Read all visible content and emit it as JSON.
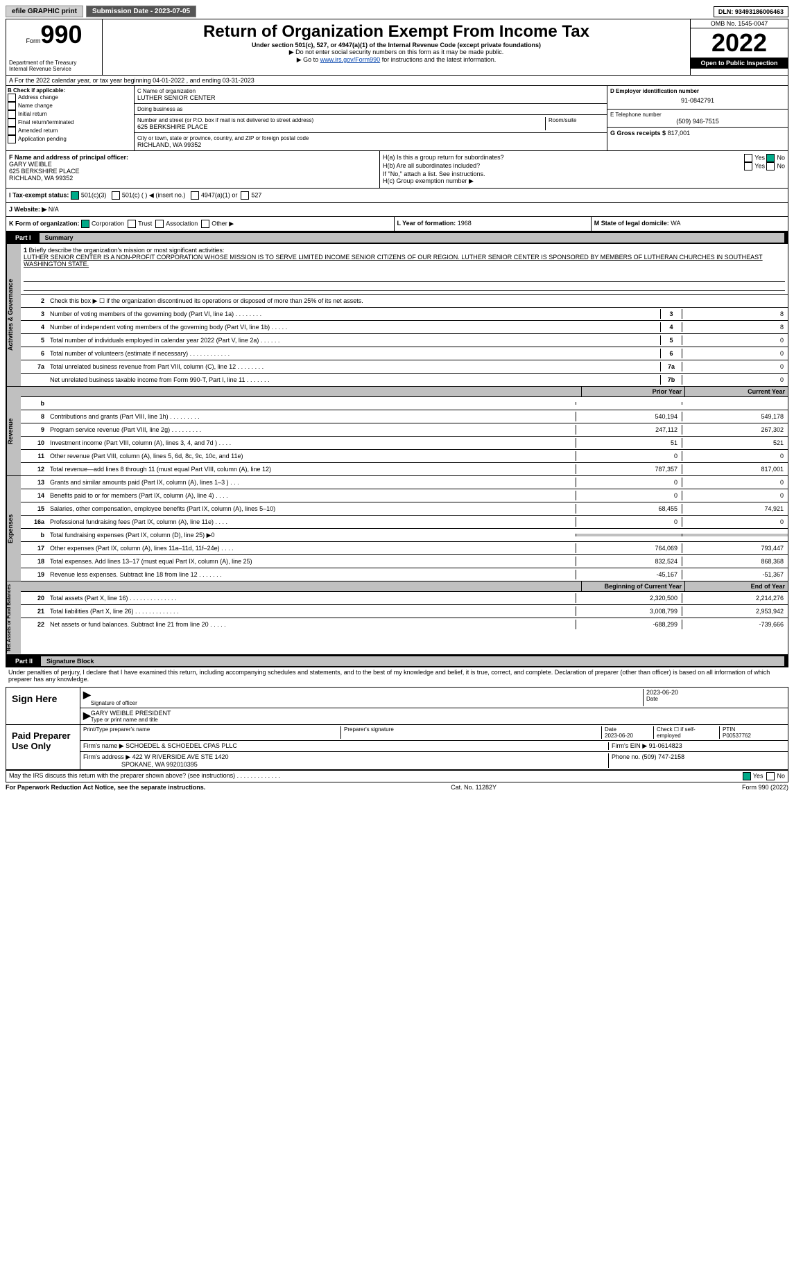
{
  "topbar": {
    "efile": "efile GRAPHIC print",
    "submission": "Submission Date - 2023-07-05",
    "dln": "DLN: 93493186006463"
  },
  "header": {
    "form_label": "Form",
    "form_no": "990",
    "dept": "Department of the Treasury",
    "irs": "Internal Revenue Service",
    "title": "Return of Organization Exempt From Income Tax",
    "subtitle": "Under section 501(c), 527, or 4947(a)(1) of the Internal Revenue Code (except private foundations)",
    "note1": "▶ Do not enter social security numbers on this form as it may be made public.",
    "note2_pre": "▶ Go to ",
    "note2_link": "www.irs.gov/Form990",
    "note2_post": " for instructions and the latest information.",
    "omb": "OMB No. 1545-0047",
    "year": "2022",
    "open": "Open to Public Inspection"
  },
  "a": {
    "text": "A For the 2022 calendar year, or tax year beginning 04-01-2022    , and ending 03-31-2023"
  },
  "b": {
    "label": "B Check if applicable:",
    "items": [
      "Address change",
      "Name change",
      "Initial return",
      "Final return/terminated",
      "Amended return",
      "Application pending"
    ]
  },
  "c": {
    "name_label": "C Name of organization",
    "name": "LUTHER SENIOR CENTER",
    "dba_label": "Doing business as",
    "dba": "",
    "addr_label": "Number and street (or P.O. box if mail is not delivered to street address)",
    "addr": "625 BERKSHIRE PLACE",
    "room_label": "Room/suite",
    "room": "",
    "city_label": "City or town, state or province, country, and ZIP or foreign postal code",
    "city": "RICHLAND, WA  99352"
  },
  "d": {
    "label": "D Employer identification number",
    "val": "91-0842791"
  },
  "e": {
    "label": "E Telephone number",
    "val": "(509) 946-7515"
  },
  "g": {
    "label": "G Gross receipts $",
    "val": "817,001"
  },
  "f": {
    "label": "F  Name and address of principal officer:",
    "name": "GARY WEIBLE",
    "addr1": "625 BERKSHIRE PLACE",
    "addr2": "RICHLAND, WA  99352"
  },
  "h": {
    "a": "H(a)  Is this a group return for subordinates?",
    "b": "H(b)  Are all subordinates included?",
    "note": "If \"No,\" attach a list. See instructions.",
    "c": "H(c)  Group exemption number ▶",
    "yes": "Yes",
    "no": "No"
  },
  "i": {
    "label": "I   Tax-exempt status:",
    "o1": "501(c)(3)",
    "o2": "501(c) (  ) ◀ (insert no.)",
    "o3": "4947(a)(1) or",
    "o4": "527"
  },
  "j": {
    "label": "J   Website: ▶",
    "val": "N/A"
  },
  "k": {
    "label": "K Form of organization:",
    "o1": "Corporation",
    "o2": "Trust",
    "o3": "Association",
    "o4": "Other ▶"
  },
  "l": {
    "label": "L Year of formation:",
    "val": "1968"
  },
  "m": {
    "label": "M State of legal domicile:",
    "val": "WA"
  },
  "part1": {
    "label": "Part I",
    "title": "Summary"
  },
  "mission": {
    "num": "1",
    "text": "Briefly describe the organization's mission or most significant activities:",
    "body": "LUTHER SENIOR CENTER IS A NON-PROFIT CORPORATION WHOSE MISSION IS TO SERVE LIMITED INCOME SENIOR CITIZENS OF OUR REGION. LUTHER SENIOR CENTER IS SPONSORED BY MEMBERS OF LUTHERAN CHURCHES IN SOUTHEAST WASHINGTON STATE."
  },
  "gov": {
    "label": "Activities & Governance",
    "rows": [
      {
        "n": "2",
        "t": "Check this box ▶ ☐  if the organization discontinued its operations or disposed of more than 25% of its net assets."
      },
      {
        "n": "3",
        "t": "Number of voting members of the governing body (Part VI, line 1a)   .    .    .    .    .    .    .    .",
        "box": "3",
        "v": "8"
      },
      {
        "n": "4",
        "t": "Number of independent voting members of the governing body (Part VI, line 1b)  .    .    .    .    .",
        "box": "4",
        "v": "8"
      },
      {
        "n": "5",
        "t": "Total number of individuals employed in calendar year 2022 (Part V, line 2a)  .    .    .    .    .    .",
        "box": "5",
        "v": "0"
      },
      {
        "n": "6",
        "t": "Total number of volunteers (estimate if necessary)    .    .    .    .    .    .    .    .    .    .    .    .",
        "box": "6",
        "v": "0"
      },
      {
        "n": "7a",
        "t": "Total unrelated business revenue from Part VIII, column (C), line 12   .    .    .    .    .    .    .    .",
        "box": "7a",
        "v": "0"
      },
      {
        "n": "",
        "t": "Net unrelated business taxable income from Form 990-T, Part I, line 11  .    .    .    .    .    .    .",
        "box": "7b",
        "v": "0"
      }
    ]
  },
  "rev": {
    "label": "Revenue",
    "prior": "Prior Year",
    "current": "Current Year",
    "rows": [
      {
        "n": "b",
        "t": "",
        "p": "",
        "c": ""
      },
      {
        "n": "8",
        "t": "Contributions and grants (Part VIII, line 1h)   .    .    .    .    .    .    .    .    .",
        "p": "540,194",
        "c": "549,178"
      },
      {
        "n": "9",
        "t": "Program service revenue (Part VIII, line 2g)  .    .    .    .    .    .    .    .    .",
        "p": "247,112",
        "c": "267,302"
      },
      {
        "n": "10",
        "t": "Investment income (Part VIII, column (A), lines 3, 4, and 7d )   .    .    .    .",
        "p": "51",
        "c": "521"
      },
      {
        "n": "11",
        "t": "Other revenue (Part VIII, column (A), lines 5, 6d, 8c, 9c, 10c, and 11e)",
        "p": "0",
        "c": "0"
      },
      {
        "n": "12",
        "t": "Total revenue—add lines 8 through 11 (must equal Part VIII, column (A), line 12)",
        "p": "787,357",
        "c": "817,001"
      }
    ]
  },
  "exp": {
    "label": "Expenses",
    "rows": [
      {
        "n": "13",
        "t": "Grants and similar amounts paid (Part IX, column (A), lines 1–3 )  .    .    .",
        "p": "0",
        "c": "0"
      },
      {
        "n": "14",
        "t": "Benefits paid to or for members (Part IX, column (A), line 4)    .    .    .    .",
        "p": "0",
        "c": "0"
      },
      {
        "n": "15",
        "t": "Salaries, other compensation, employee benefits (Part IX, column (A), lines 5–10)",
        "p": "68,455",
        "c": "74,921"
      },
      {
        "n": "16a",
        "t": "Professional fundraising fees (Part IX, column (A), line 11e)   .    .    .    .",
        "p": "0",
        "c": "0"
      },
      {
        "n": "b",
        "t": "Total fundraising expenses (Part IX, column (D), line 25) ▶0",
        "grey": true
      },
      {
        "n": "17",
        "t": "Other expenses (Part IX, column (A), lines 11a–11d, 11f–24e)  .    .    .    .",
        "p": "764,069",
        "c": "793,447"
      },
      {
        "n": "18",
        "t": "Total expenses. Add lines 13–17 (must equal Part IX, column (A), line 25)",
        "p": "832,524",
        "c": "868,368"
      },
      {
        "n": "19",
        "t": "Revenue less expenses. Subtract line 18 from line 12  .    .    .    .    .    .    .",
        "p": "-45,167",
        "c": "-51,367"
      }
    ]
  },
  "net": {
    "label": "Net Assets or Fund Balances",
    "begin": "Beginning of Current Year",
    "end": "End of Year",
    "rows": [
      {
        "n": "20",
        "t": "Total assets (Part X, line 16)  .    .    .    .    .    .    .    .    .    .    .    .    .    .",
        "p": "2,320,500",
        "c": "2,214,276"
      },
      {
        "n": "21",
        "t": "Total liabilities (Part X, line 26)    .    .    .    .    .    .    .    .    .    .    .    .    .",
        "p": "3,008,799",
        "c": "2,953,942"
      },
      {
        "n": "22",
        "t": "Net assets or fund balances. Subtract line 21 from line 20  .    .    .    .    .",
        "p": "-688,299",
        "c": "-739,666"
      }
    ]
  },
  "part2": {
    "label": "Part II",
    "title": "Signature Block",
    "decl": "Under penalties of perjury, I declare that I have examined this return, including accompanying schedules and statements, and to the best of my knowledge and belief, it is true, correct, and complete. Declaration of preparer (other than officer) is based on all information of which preparer has any knowledge."
  },
  "sign": {
    "label": "Sign Here",
    "sig_label": "Signature of officer",
    "date": "2023-06-20",
    "name": "GARY WEIBLE  PRESIDENT",
    "name_label": "Type or print name and title"
  },
  "prep": {
    "label": "Paid Preparer Use Only",
    "h1": "Print/Type preparer's name",
    "h2": "Preparer's signature",
    "h3": "Date",
    "h3v": "2023-06-20",
    "h4": "Check ☐ if self-employed",
    "h5": "PTIN",
    "h5v": "P00537762",
    "firm_label": "Firm's name     ▶",
    "firm": "SCHOEDEL & SCHOEDEL CPAS PLLC",
    "ein_label": "Firm's EIN ▶",
    "ein": "91-0614823",
    "addr_label": "Firm's address ▶",
    "addr1": "422 W RIVERSIDE AVE STE 1420",
    "addr2": "SPOKANE, WA  992010395",
    "phone_label": "Phone no.",
    "phone": "(509) 747-2158"
  },
  "discuss": {
    "text": "May the IRS discuss this return with the preparer shown above? (see instructions)   .    .    .    .    .    .    .    .    .    .    .    .    .",
    "yes": "Yes",
    "no": "No"
  },
  "footer": {
    "left": "For Paperwork Reduction Act Notice, see the separate instructions.",
    "mid": "Cat. No. 11282Y",
    "right": "Form 990 (2022)"
  }
}
